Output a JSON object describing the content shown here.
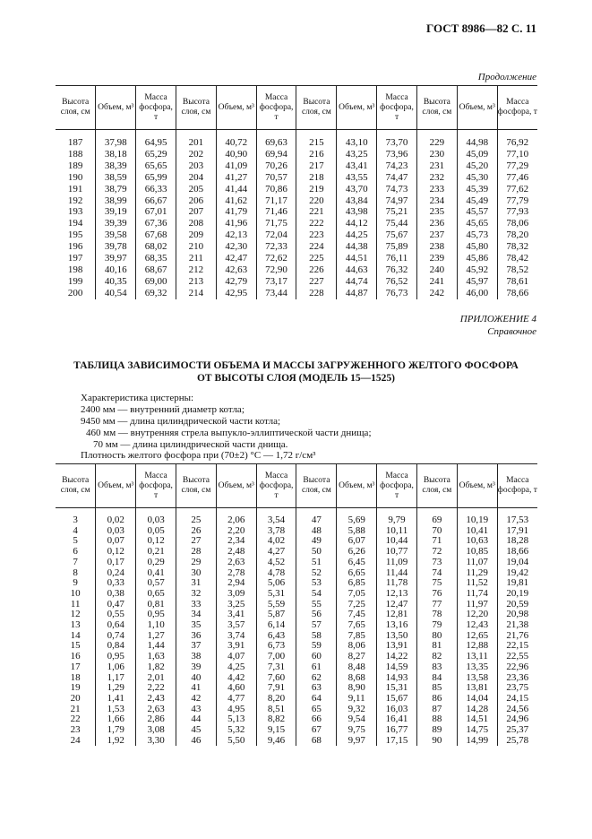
{
  "header": {
    "title": "ГОСТ 8986—82 С. 11",
    "continuation": "Продолжение"
  },
  "table1": {
    "headers": [
      "Высота слоя, см",
      "Объем, м³",
      "Масса фосфора, т"
    ],
    "rows": [
      [
        "187",
        "37,98",
        "64,95",
        "201",
        "40,72",
        "69,63",
        "215",
        "43,10",
        "73,70",
        "229",
        "44,98",
        "76,92"
      ],
      [
        "188",
        "38,18",
        "65,29",
        "202",
        "40,90",
        "69,94",
        "216",
        "43,25",
        "73,96",
        "230",
        "45,09",
        "77,10"
      ],
      [
        "189",
        "38,39",
        "65,65",
        "203",
        "41,09",
        "70,26",
        "217",
        "43,41",
        "74,23",
        "231",
        "45,20",
        "77,29"
      ],
      [
        "190",
        "38,59",
        "65,99",
        "204",
        "41,27",
        "70,57",
        "218",
        "43,55",
        "74,47",
        "232",
        "45,30",
        "77,46"
      ],
      [
        "191",
        "38,79",
        "66,33",
        "205",
        "41,44",
        "70,86",
        "219",
        "43,70",
        "74,73",
        "233",
        "45,39",
        "77,62"
      ],
      [
        "192",
        "38,99",
        "66,67",
        "206",
        "41,62",
        "71,17",
        "220",
        "43,84",
        "74,97",
        "234",
        "45,49",
        "77,79"
      ],
      [
        "193",
        "39,19",
        "67,01",
        "207",
        "41,79",
        "71,46",
        "221",
        "43,98",
        "75,21",
        "235",
        "45,57",
        "77,93"
      ],
      [
        "194",
        "39,39",
        "67,36",
        "208",
        "41,96",
        "71,75",
        "222",
        "44,12",
        "75,44",
        "236",
        "45,65",
        "78,06"
      ],
      [
        "195",
        "39,58",
        "67,68",
        "209",
        "42,13",
        "72,04",
        "223",
        "44,25",
        "75,67",
        "237",
        "45,73",
        "78,20"
      ],
      [
        "196",
        "39,78",
        "68,02",
        "210",
        "42,30",
        "72,33",
        "224",
        "44,38",
        "75,89",
        "238",
        "45,80",
        "78,32"
      ],
      [
        "197",
        "39,97",
        "68,35",
        "211",
        "42,47",
        "72,62",
        "225",
        "44,51",
        "76,11",
        "239",
        "45,86",
        "78,42"
      ],
      [
        "198",
        "40,16",
        "68,67",
        "212",
        "42,63",
        "72,90",
        "226",
        "44,63",
        "76,32",
        "240",
        "45,92",
        "78,52"
      ],
      [
        "199",
        "40,35",
        "69,00",
        "213",
        "42,79",
        "73,17",
        "227",
        "44,74",
        "76,52",
        "241",
        "45,97",
        "78,61"
      ],
      [
        "200",
        "40,54",
        "69,32",
        "214",
        "42,95",
        "73,44",
        "228",
        "44,87",
        "76,73",
        "242",
        "46,00",
        "78,66"
      ]
    ]
  },
  "appendix": {
    "label": "ПРИЛОЖЕНИЕ 4",
    "sublabel": "Справочное"
  },
  "section": {
    "title_line1": "ТАБЛИЦА ЗАВИСИМОСТИ ОБЪЕМА И МАССЫ ЗАГРУЖЕННОГО ЖЕЛТОГО ФОСФОРА",
    "title_line2": "ОТ ВЫСОТЫ СЛОЯ (МОДЕЛЬ 15—1525)",
    "lines": [
      "Характеристика цистерны:",
      "2400 мм — внутренний диаметр котла;",
      "9450 мм — длина цилиндрической части котла;",
      "460 мм — внутренняя стрела выпукло-эллиптической части днища;",
      "70 мм — длина цилиндрической части днища.",
      "Плотность желтого фосфора при (70±2) °С — 1,72 г/см³"
    ]
  },
  "table2": {
    "headers": [
      "Высота слоя, см",
      "Объем, м³",
      "Масса фосфора, т"
    ],
    "rows": [
      [
        "3",
        "0,02",
        "0,03",
        "25",
        "2,06",
        "3,54",
        "47",
        "5,69",
        "9,79",
        "69",
        "10,19",
        "17,53"
      ],
      [
        "4",
        "0,03",
        "0,05",
        "26",
        "2,20",
        "3,78",
        "48",
        "5,88",
        "10,11",
        "70",
        "10,41",
        "17,91"
      ],
      [
        "5",
        "0,07",
        "0,12",
        "27",
        "2,34",
        "4,02",
        "49",
        "6,07",
        "10,44",
        "71",
        "10,63",
        "18,28"
      ],
      [
        "6",
        "0,12",
        "0,21",
        "28",
        "2,48",
        "4,27",
        "50",
        "6,26",
        "10,77",
        "72",
        "10,85",
        "18,66"
      ],
      [
        "7",
        "0,17",
        "0,29",
        "29",
        "2,63",
        "4,52",
        "51",
        "6,45",
        "11,09",
        "73",
        "11,07",
        "19,04"
      ],
      [
        "8",
        "0,24",
        "0,41",
        "30",
        "2,78",
        "4,78",
        "52",
        "6,65",
        "11,44",
        "74",
        "11,29",
        "19,42"
      ],
      [
        "9",
        "0,33",
        "0,57",
        "31",
        "2,94",
        "5,06",
        "53",
        "6,85",
        "11,78",
        "75",
        "11,52",
        "19,81"
      ],
      [
        "10",
        "0,38",
        "0,65",
        "32",
        "3,09",
        "5,31",
        "54",
        "7,05",
        "12,13",
        "76",
        "11,74",
        "20,19"
      ],
      [
        "11",
        "0,47",
        "0,81",
        "33",
        "3,25",
        "5,59",
        "55",
        "7,25",
        "12,47",
        "77",
        "11,97",
        "20,59"
      ],
      [
        "12",
        "0,55",
        "0,95",
        "34",
        "3,41",
        "5,87",
        "56",
        "7,45",
        "12,81",
        "78",
        "12,20",
        "20,98"
      ],
      [
        "13",
        "0,64",
        "1,10",
        "35",
        "3,57",
        "6,14",
        "57",
        "7,65",
        "13,16",
        "79",
        "12,43",
        "21,38"
      ],
      [
        "14",
        "0,74",
        "1,27",
        "36",
        "3,74",
        "6,43",
        "58",
        "7,85",
        "13,50",
        "80",
        "12,65",
        "21,76"
      ],
      [
        "15",
        "0,84",
        "1,44",
        "37",
        "3,91",
        "6,73",
        "59",
        "8,06",
        "13,91",
        "81",
        "12,88",
        "22,15"
      ],
      [
        "16",
        "0,95",
        "1,63",
        "38",
        "4,07",
        "7,00",
        "60",
        "8,27",
        "14,22",
        "82",
        "13,11",
        "22,55"
      ],
      [
        "17",
        "1,06",
        "1,82",
        "39",
        "4,25",
        "7,31",
        "61",
        "8,48",
        "14,59",
        "83",
        "13,35",
        "22,96"
      ],
      [
        "18",
        "1,17",
        "2,01",
        "40",
        "4,42",
        "7,60",
        "62",
        "8,68",
        "14,93",
        "84",
        "13,58",
        "23,36"
      ],
      [
        "19",
        "1,29",
        "2,22",
        "41",
        "4,60",
        "7,91",
        "63",
        "8,90",
        "15,31",
        "85",
        "13,81",
        "23,75"
      ],
      [
        "20",
        "1,41",
        "2,43",
        "42",
        "4,77",
        "8,20",
        "64",
        "9,11",
        "15,67",
        "86",
        "14,04",
        "24,15"
      ],
      [
        "21",
        "1,53",
        "2,63",
        "43",
        "4,95",
        "8,51",
        "65",
        "9,32",
        "16,03",
        "87",
        "14,28",
        "24,56"
      ],
      [
        "22",
        "1,66",
        "2,86",
        "44",
        "5,13",
        "8,82",
        "66",
        "9,54",
        "16,41",
        "88",
        "14,51",
        "24,96"
      ],
      [
        "23",
        "1,79",
        "3,08",
        "45",
        "5,32",
        "9,15",
        "67",
        "9,75",
        "16,77",
        "89",
        "14,75",
        "25,37"
      ],
      [
        "24",
        "1,92",
        "3,30",
        "46",
        "5,50",
        "9,46",
        "68",
        "9,97",
        "17,15",
        "90",
        "14,99",
        "25,78"
      ]
    ]
  }
}
